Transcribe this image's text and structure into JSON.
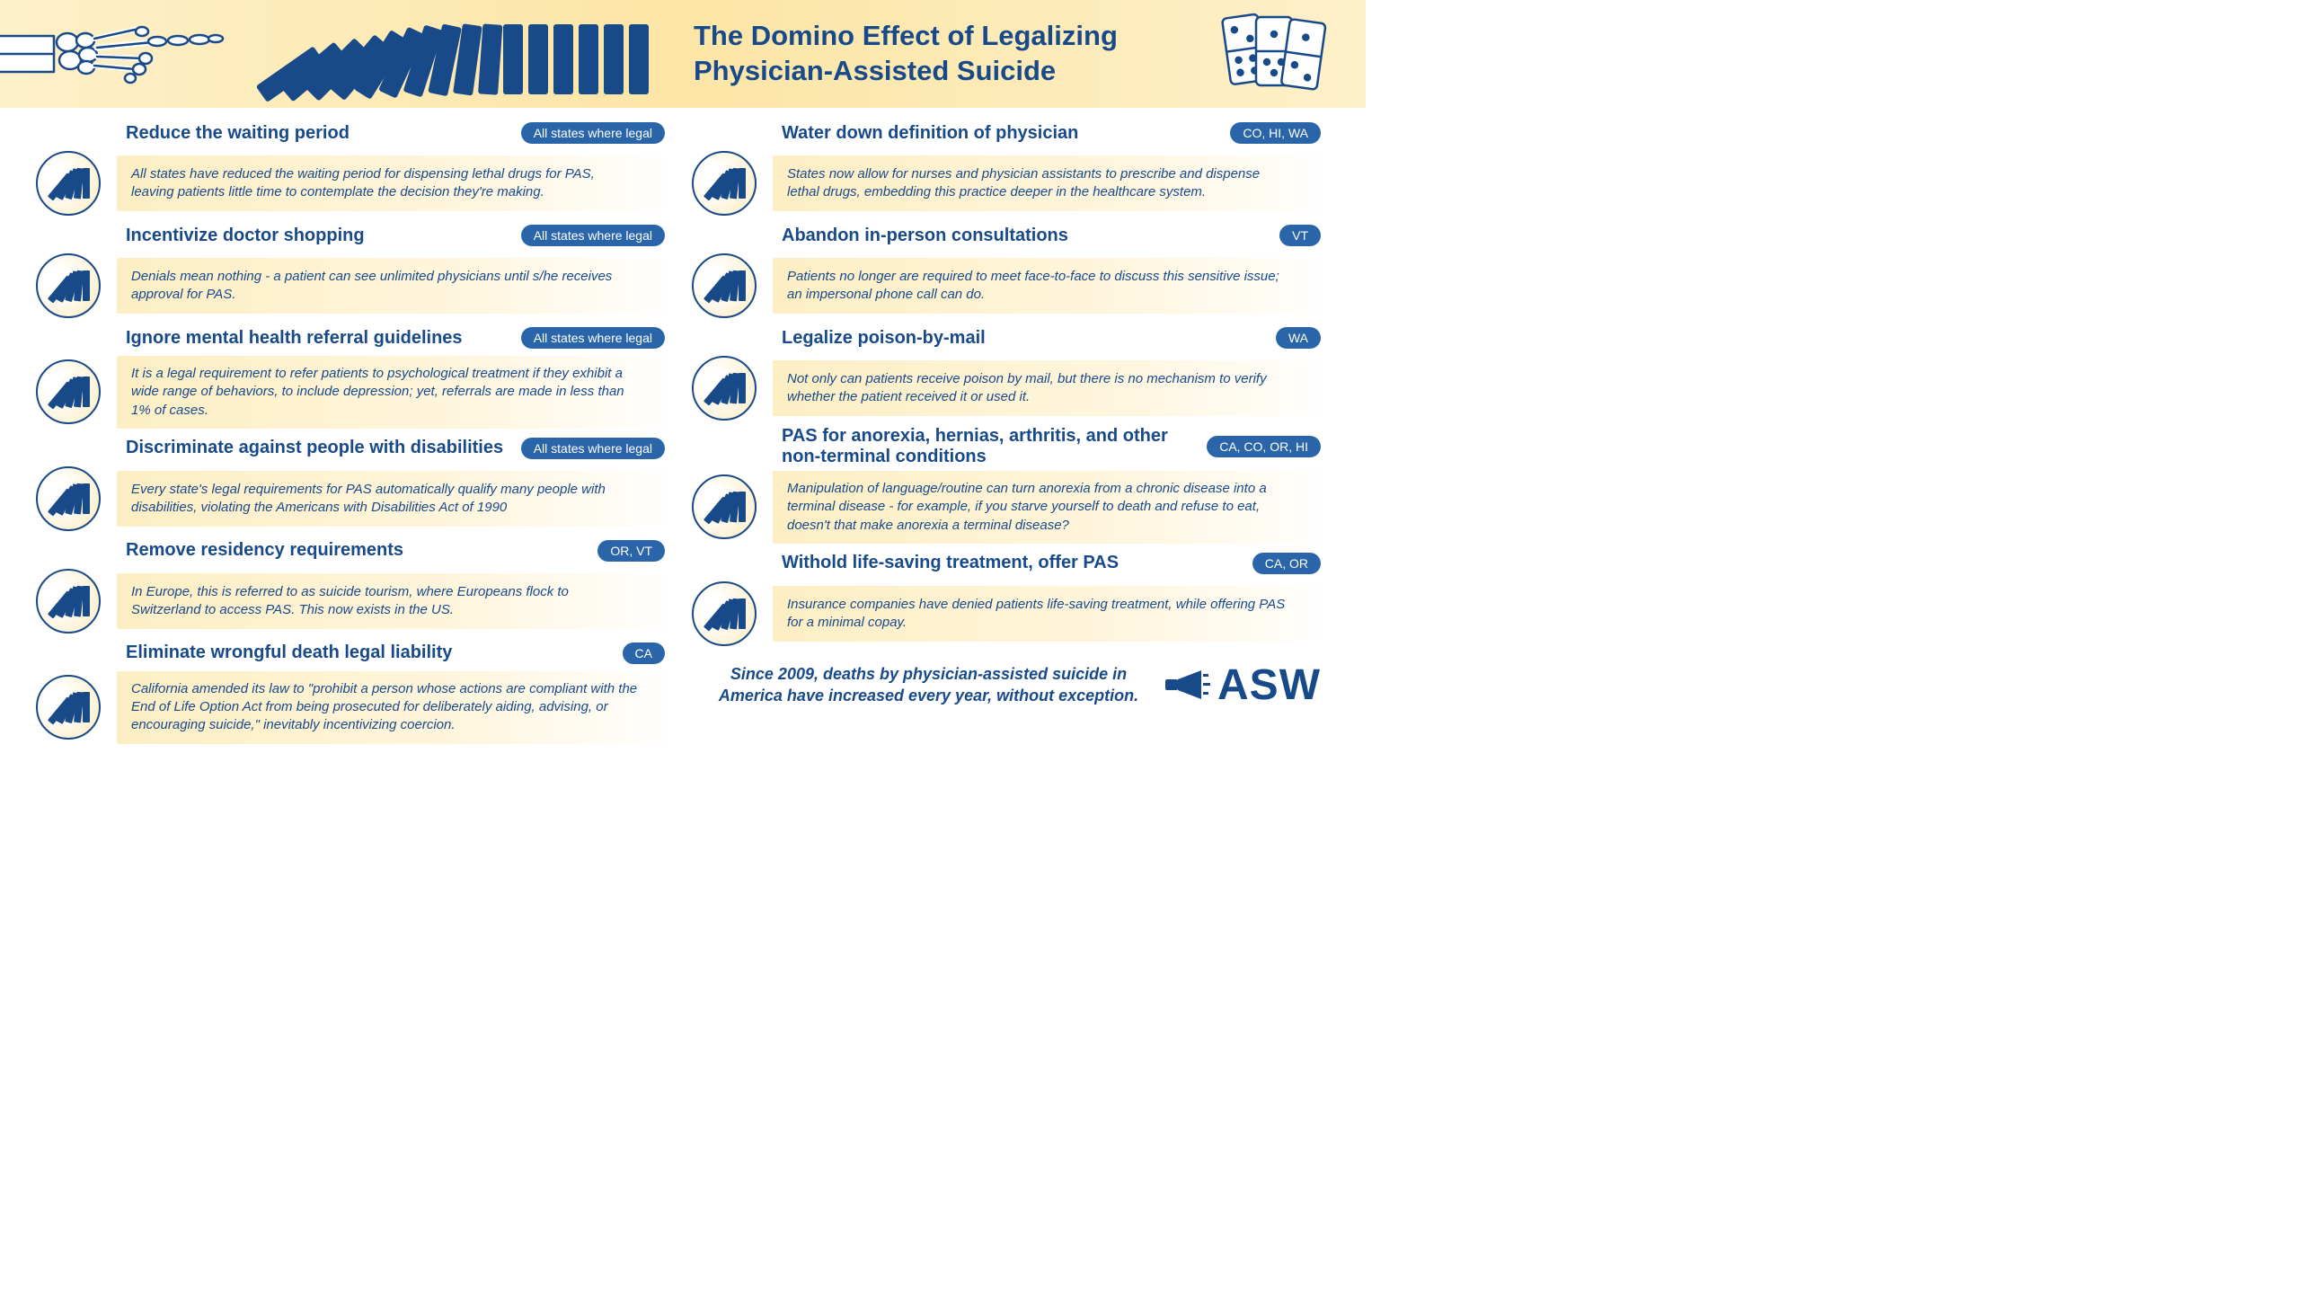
{
  "colors": {
    "navy": "#184a8a",
    "badge_bg": "#2a65aa",
    "header_grad_a": "#fef0c9",
    "header_grad_b": "#fce5a6",
    "desc_grad_a": "#fdeec3",
    "desc_grad_b": "#fef6df",
    "page_bg": "#ffffff"
  },
  "typography": {
    "header_title_pt": 31,
    "item_title_pt": 20,
    "badge_pt": 14,
    "desc_pt": 15,
    "footer_pt": 18,
    "logo_pt": 48,
    "family": "Segoe UI / Arial"
  },
  "header": {
    "title": "The Domino Effect of Legalizing Physician-Assisted Suicide",
    "domino_count": 16,
    "domino_tilts_deg": [
      55,
      50,
      45,
      40,
      32,
      25,
      18,
      12,
      8,
      4,
      0,
      0,
      0,
      0,
      0,
      0
    ]
  },
  "icon": {
    "mini_tilts_deg": [
      40,
      28,
      16,
      6,
      0
    ]
  },
  "left_items": [
    {
      "title": "Reduce the waiting period",
      "badge": "All states where legal",
      "desc": "All states have reduced the waiting period for dispensing lethal drugs for PAS, leaving patients little time to contemplate the decision they're making."
    },
    {
      "title": "Incentivize doctor shopping",
      "badge": "All states where legal",
      "desc": "Denials mean nothing - a patient can see unlimited physicians until s/he receives approval for PAS."
    },
    {
      "title": "Ignore mental health referral guidelines",
      "badge": "All states where legal",
      "desc": "It is a legal requirement to refer patients to psychological treatment if they exhibit a wide range of behaviors, to include depression; yet, referrals are made in less than 1% of cases."
    },
    {
      "title": "Discriminate against people with disabilities",
      "badge": "All states where legal",
      "desc": "Every state's legal requirements for PAS automatically qualify many people with disabilities, violating the Americans with Disabilities Act of 1990"
    },
    {
      "title": "Remove residency requirements",
      "badge": "OR, VT",
      "desc": "In Europe, this is referred to as suicide tourism, where Europeans flock to Switzerland to access PAS. This now exists in the US."
    },
    {
      "title": "Eliminate wrongful death legal liability",
      "badge": "CA",
      "desc": "California amended its law to \"prohibit a person whose actions are compliant with the End of Life Option Act from being prosecuted for deliberately aiding, advising, or encouraging suicide,\" inevitably incentivizing coercion."
    }
  ],
  "right_items": [
    {
      "title": "Water down definition of physician",
      "badge": "CO, HI, WA",
      "desc": "States now allow for nurses and physician assistants to prescribe and dispense lethal drugs, embedding this practice deeper in the healthcare system."
    },
    {
      "title": "Abandon in-person consultations",
      "badge": "VT",
      "desc": "Patients no longer are required to meet face-to-face to discuss this sensitive issue; an impersonal phone call can do."
    },
    {
      "title": "Legalize poison-by-mail",
      "badge": "WA",
      "desc": "Not only can patients receive poison by mail, but there is no mechanism to verify whether the patient received it or used it."
    },
    {
      "title_html": "<b>PAS</b> for anorexia, hernias, arthritis, and other non-terminal conditions",
      "title": "PAS for anorexia, hernias, arthritis, and other non-terminal conditions",
      "badge": "CA, CO, OR, HI",
      "desc": "Manipulation of language/routine can turn anorexia from a chronic disease into a terminal disease - for example, if you starve yourself to death and refuse to eat, doesn't that make anorexia a terminal disease?"
    },
    {
      "title_html": "Withold life-saving treatment, offer <b>PAS</b>",
      "title": "Withold life-saving treatment, offer PAS",
      "badge": "CA, OR",
      "desc": "Insurance companies have denied patients life-saving treatment, while offering PAS for a minimal copay."
    }
  ],
  "footer": {
    "text": "Since 2009, deaths by physician-assisted suicide in America have increased every year,  without exception.",
    "logo_text": "ASW"
  }
}
